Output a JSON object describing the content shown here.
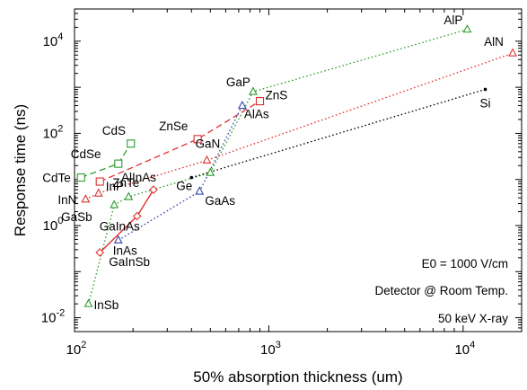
{
  "chart_data": {
    "type": "scatter",
    "title": "",
    "xlabel": "50% absorption thickness (um)",
    "ylabel": "Response time (ns)",
    "xscale": "log",
    "yscale": "log",
    "xlim": [
      100,
      20000
    ],
    "ylim": [
      0.005,
      50000
    ],
    "x_ticks": [
      {
        "base": "10",
        "exp": "2",
        "value": 100
      },
      {
        "base": "10",
        "exp": "3",
        "value": 1000
      },
      {
        "base": "10",
        "exp": "4",
        "value": 10000
      }
    ],
    "y_ticks": [
      {
        "base": "10",
        "exp": "-2",
        "value": 0.01
      },
      {
        "base": "10",
        "exp": "0",
        "value": 1
      },
      {
        "base": "10",
        "exp": "2",
        "value": 100
      },
      {
        "base": "10",
        "exp": "4",
        "value": 10000
      }
    ],
    "grid": false,
    "legend": "none",
    "annotations": [
      "E0 = 1000 V/cm",
      "Detector @ Room Temp.",
      "50 keV X-ray"
    ],
    "series": [
      {
        "color": "#2e9b2e",
        "marker": "triangle",
        "line": "dotted",
        "points": [
          {
            "label": "InSb",
            "x": 118,
            "y": 0.02
          },
          {
            "label": "GaSb",
            "x": 160,
            "y": 2.8
          },
          {
            "label": "",
            "x": 190,
            "y": 4.2
          },
          {
            "label": "",
            "x": 500,
            "y": 14
          },
          {
            "label": "GaP",
            "x": 830,
            "y": 800
          },
          {
            "label": "AlP",
            "x": 10500,
            "y": 18000
          }
        ]
      },
      {
        "color": "#2e9b2e",
        "marker": "square",
        "line": "dashed",
        "points": [
          {
            "label": "CdTe",
            "x": 108,
            "y": 11
          },
          {
            "label": "CdSe",
            "x": 168,
            "y": 22
          },
          {
            "label": "CdS",
            "x": 195,
            "y": 60
          }
        ]
      },
      {
        "color": "#e03030",
        "marker": "square",
        "line": "dashed",
        "points": [
          {
            "label": "ZnTe",
            "x": 135,
            "y": 9
          },
          {
            "label": "ZnSe",
            "x": 430,
            "y": 75
          },
          {
            "label": "ZnS",
            "x": 900,
            "y": 500
          }
        ]
      },
      {
        "color": "#e03030",
        "marker": "triangle",
        "line": "dotted",
        "points": [
          {
            "label": "InN",
            "x": 114,
            "y": 3.7
          },
          {
            "label": "InP",
            "x": 133,
            "y": 5
          },
          {
            "label": "GaN",
            "x": 480,
            "y": 26
          },
          {
            "label": "AlN",
            "x": 18000,
            "y": 5500
          }
        ]
      },
      {
        "color": "#e03030",
        "marker": "diamond",
        "line": "solid",
        "points": [
          {
            "label": "GaInSb",
            "x": 135,
            "y": 0.26
          },
          {
            "label": "GaInAs",
            "x": 210,
            "y": 1.6
          },
          {
            "label": "AlInAs",
            "x": 255,
            "y": 6
          }
        ]
      },
      {
        "color": "#3344aa",
        "marker": "triangle",
        "line": "dotted",
        "points": [
          {
            "label": "InAs",
            "x": 168,
            "y": 0.48
          },
          {
            "label": "GaAs",
            "x": 440,
            "y": 5.5
          },
          {
            "label": "AlAs",
            "x": 730,
            "y": 400
          }
        ]
      },
      {
        "color": "#000000",
        "marker": "dot",
        "line": "dotted",
        "points": [
          {
            "label": "Ge",
            "x": 400,
            "y": 11
          },
          {
            "label": "Si",
            "x": 13000,
            "y": 900
          }
        ]
      }
    ]
  }
}
